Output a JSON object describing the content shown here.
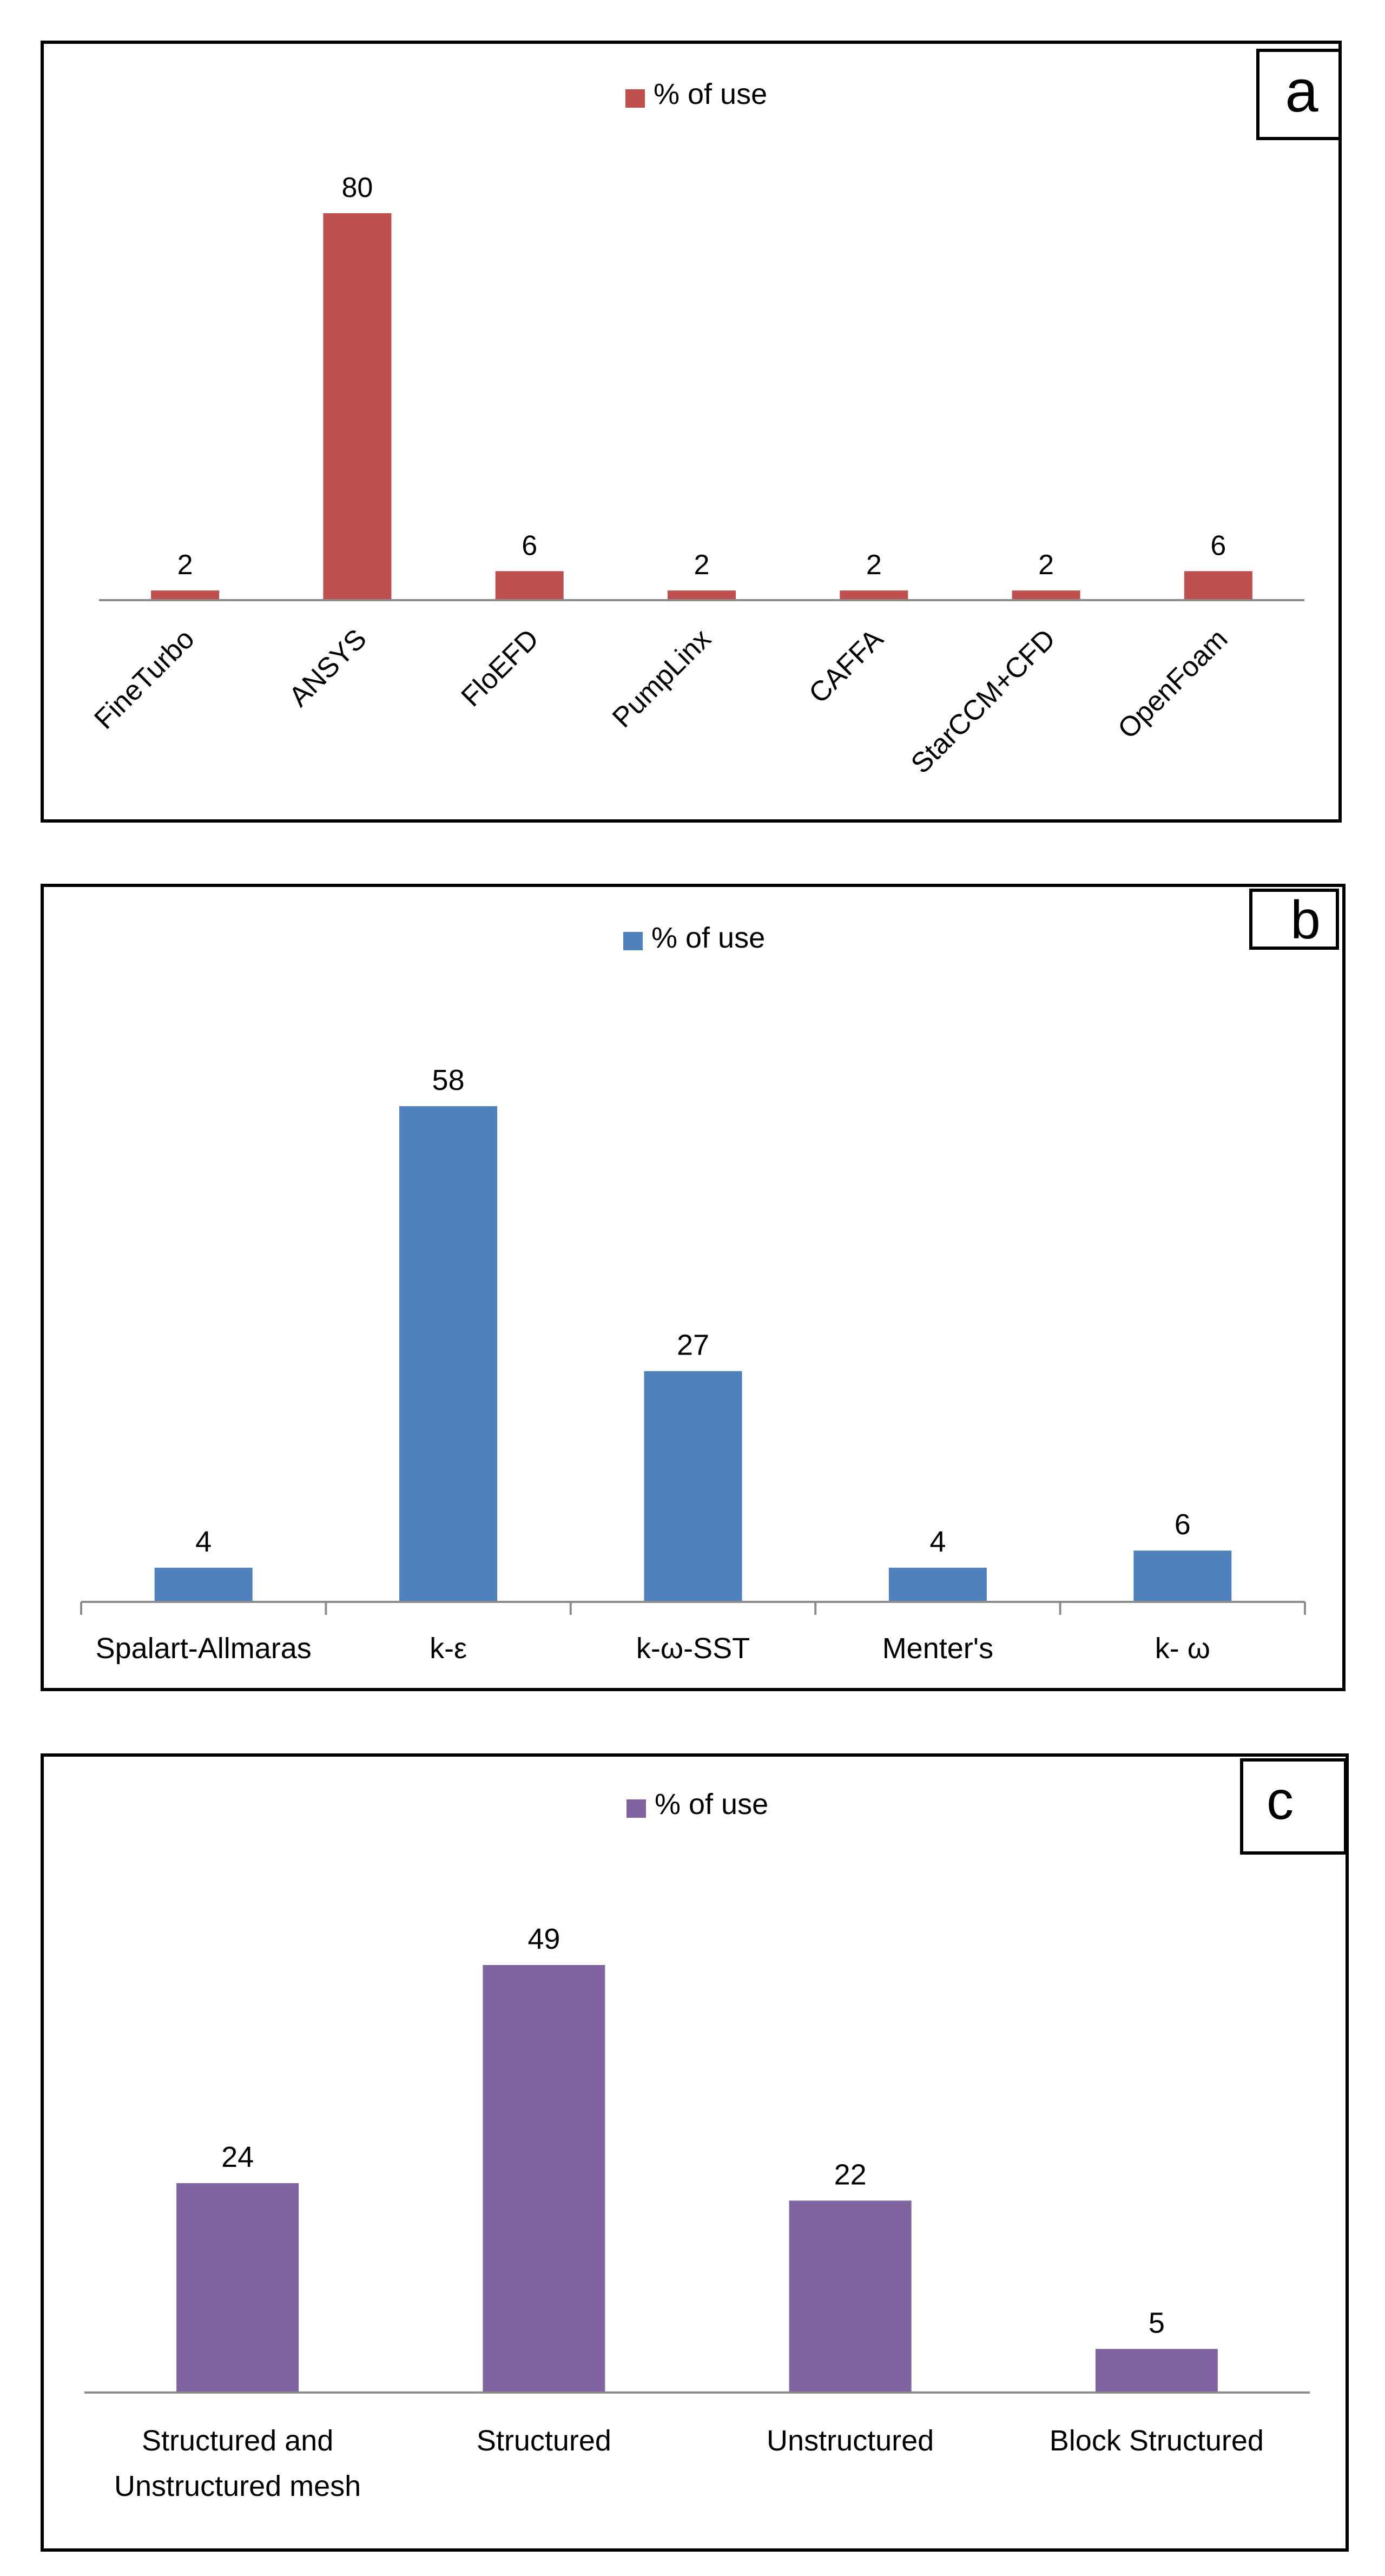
{
  "chart_data": [
    {
      "type": "bar",
      "panel_label": "a",
      "legend": "% of use",
      "legend_position": "top-center",
      "categories": [
        "FineTurbo",
        "ANSYS",
        "FloEFD",
        "PumpLinx",
        "CAFFA",
        "StarCCM+CFD",
        "OpenFoam"
      ],
      "values": [
        2,
        80,
        6,
        2,
        2,
        2,
        6
      ],
      "data_labels": [
        "2",
        "80",
        "6",
        "2",
        "2",
        "2",
        "6"
      ],
      "ylim": [
        0,
        80
      ],
      "color": "#C0504D",
      "grid": false
    },
    {
      "type": "bar",
      "panel_label": "b",
      "legend": "% of use",
      "legend_position": "top-center",
      "categories": [
        "Spalart-Allmaras",
        "k-ε",
        "k-ω-SST",
        "Menter's",
        "k- ω"
      ],
      "values": [
        4,
        58,
        27,
        4,
        6
      ],
      "data_labels": [
        "4",
        "58",
        "27",
        "4",
        "6"
      ],
      "ylim": [
        0,
        58
      ],
      "color": "#4F81BD",
      "grid": false
    },
    {
      "type": "bar",
      "panel_label": "c",
      "legend": "% of use",
      "legend_position": "top-center",
      "categories": [
        [
          "Structured and",
          "Unstructured mesh"
        ],
        [
          "Structured"
        ],
        [
          "Unstructured"
        ],
        [
          "Block Structured"
        ]
      ],
      "values": [
        24,
        49,
        22,
        5
      ],
      "data_labels": [
        "24",
        "49",
        "22",
        "5"
      ],
      "ylim": [
        0,
        49
      ],
      "color": "#8064A2",
      "grid": false
    }
  ]
}
